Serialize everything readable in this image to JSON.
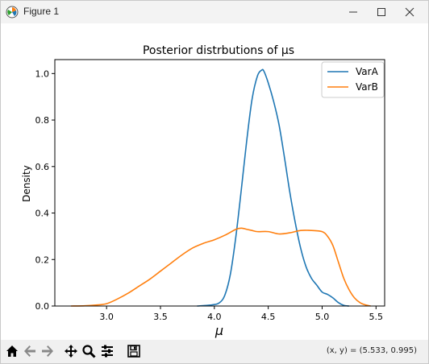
{
  "window": {
    "title": "Figure 1",
    "minimize_icon": "minimize-icon",
    "maximize_icon": "maximize-icon",
    "close_icon": "close-icon"
  },
  "toolbar": {
    "icons": [
      "home-icon",
      "back-arrow-icon",
      "forward-arrow-icon",
      "pan-icon",
      "zoom-icon",
      "configure-subplots-icon",
      "save-icon"
    ],
    "coords": "(x, y) = (5.533, 0.995)"
  },
  "chart_data": {
    "type": "line",
    "title": "Posterior distrbutions of μs",
    "xlabel": "μ",
    "ylabel": "Density",
    "xlim": [
      2.52,
      5.58
    ],
    "ylim": [
      0.0,
      1.06
    ],
    "xticks": [
      3.0,
      3.5,
      4.0,
      4.5,
      5.0,
      5.5
    ],
    "xtick_labels": [
      "3.0",
      "3.5",
      "4.0",
      "4.5",
      "5.0",
      "5.5"
    ],
    "yticks": [
      0.0,
      0.2,
      0.4,
      0.6,
      0.8,
      1.0
    ],
    "ytick_labels": [
      "0.0",
      "0.2",
      "0.4",
      "0.6",
      "0.8",
      "1.0"
    ],
    "grid": false,
    "legend": "top-right",
    "series": [
      {
        "name": "VarA",
        "color": "#1f77b4",
        "x": [
          3.84,
          3.98,
          4.05,
          4.1,
          4.15,
          4.2,
          4.25,
          4.3,
          4.35,
          4.4,
          4.44,
          4.46,
          4.5,
          4.55,
          4.6,
          4.65,
          4.7,
          4.75,
          4.8,
          4.85,
          4.9,
          4.95,
          5.0,
          5.05,
          5.1,
          5.15,
          5.2,
          5.25
        ],
        "y": [
          0.0,
          0.005,
          0.015,
          0.05,
          0.14,
          0.3,
          0.5,
          0.71,
          0.89,
          0.99,
          1.015,
          1.01,
          0.96,
          0.88,
          0.78,
          0.64,
          0.49,
          0.36,
          0.25,
          0.17,
          0.12,
          0.09,
          0.06,
          0.05,
          0.035,
          0.015,
          0.003,
          0.0
        ]
      },
      {
        "name": "VarB",
        "color": "#ff7f0e",
        "x": [
          2.67,
          2.8,
          2.9,
          3.0,
          3.1,
          3.2,
          3.3,
          3.4,
          3.5,
          3.6,
          3.7,
          3.8,
          3.9,
          4.0,
          4.1,
          4.2,
          4.25,
          4.3,
          4.35,
          4.4,
          4.5,
          4.6,
          4.7,
          4.8,
          4.9,
          5.0,
          5.05,
          5.1,
          5.15,
          5.2,
          5.25,
          5.3,
          5.35,
          5.4,
          5.45
        ],
        "y": [
          0.0,
          0.001,
          0.004,
          0.01,
          0.03,
          0.055,
          0.085,
          0.115,
          0.15,
          0.185,
          0.22,
          0.25,
          0.27,
          0.285,
          0.305,
          0.33,
          0.335,
          0.33,
          0.325,
          0.32,
          0.32,
          0.31,
          0.315,
          0.325,
          0.325,
          0.32,
          0.3,
          0.26,
          0.19,
          0.12,
          0.07,
          0.035,
          0.015,
          0.005,
          0.0
        ]
      }
    ]
  }
}
